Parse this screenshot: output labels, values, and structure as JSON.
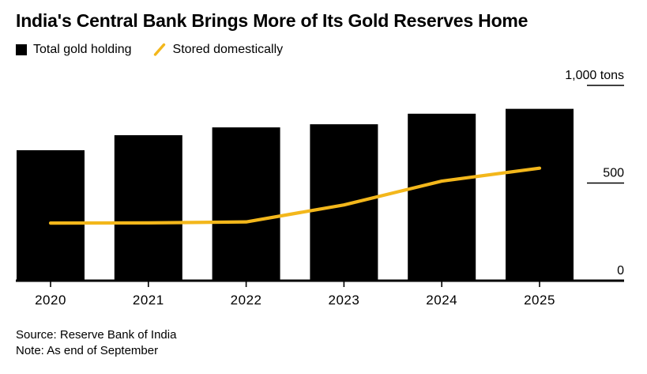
{
  "header": {
    "title": "India's Central Bank Brings More of Its Gold Reserves Home"
  },
  "legend": {
    "items": [
      {
        "label": "Total gold holding",
        "swatch": "square",
        "color": "#000000"
      },
      {
        "label": "Stored domestically",
        "swatch": "slash",
        "color": "#F3B71B"
      }
    ]
  },
  "footer": {
    "source": "Source: Reserve Bank of India",
    "note": "Note: As end of September"
  },
  "chart_data": {
    "type": "bar",
    "title": "India's Central Bank Brings More of Its Gold Reserves Home",
    "categories": [
      "2020",
      "2021",
      "2022",
      "2023",
      "2024",
      "2025"
    ],
    "series": [
      {
        "name": "Total gold holding",
        "type": "bar",
        "color": "#000000",
        "values": [
          668,
          745,
          785,
          801,
          855,
          880
        ]
      },
      {
        "name": "Stored domestically",
        "type": "line",
        "color": "#F3B71B",
        "values": [
          295,
          296,
          301,
          388,
          510,
          576
        ]
      }
    ],
    "xlabel": "",
    "ylabel": "tons",
    "ylim": [
      0,
      1000
    ],
    "yticks": [
      {
        "value": 0,
        "label": "0"
      },
      {
        "value": 500,
        "label": "500"
      },
      {
        "value": 1000,
        "label": "1,000 tons"
      }
    ],
    "legend_position": "top-left",
    "grid": "right-side tick dashes at 500 and 1,000",
    "axis_color": "#000000"
  }
}
